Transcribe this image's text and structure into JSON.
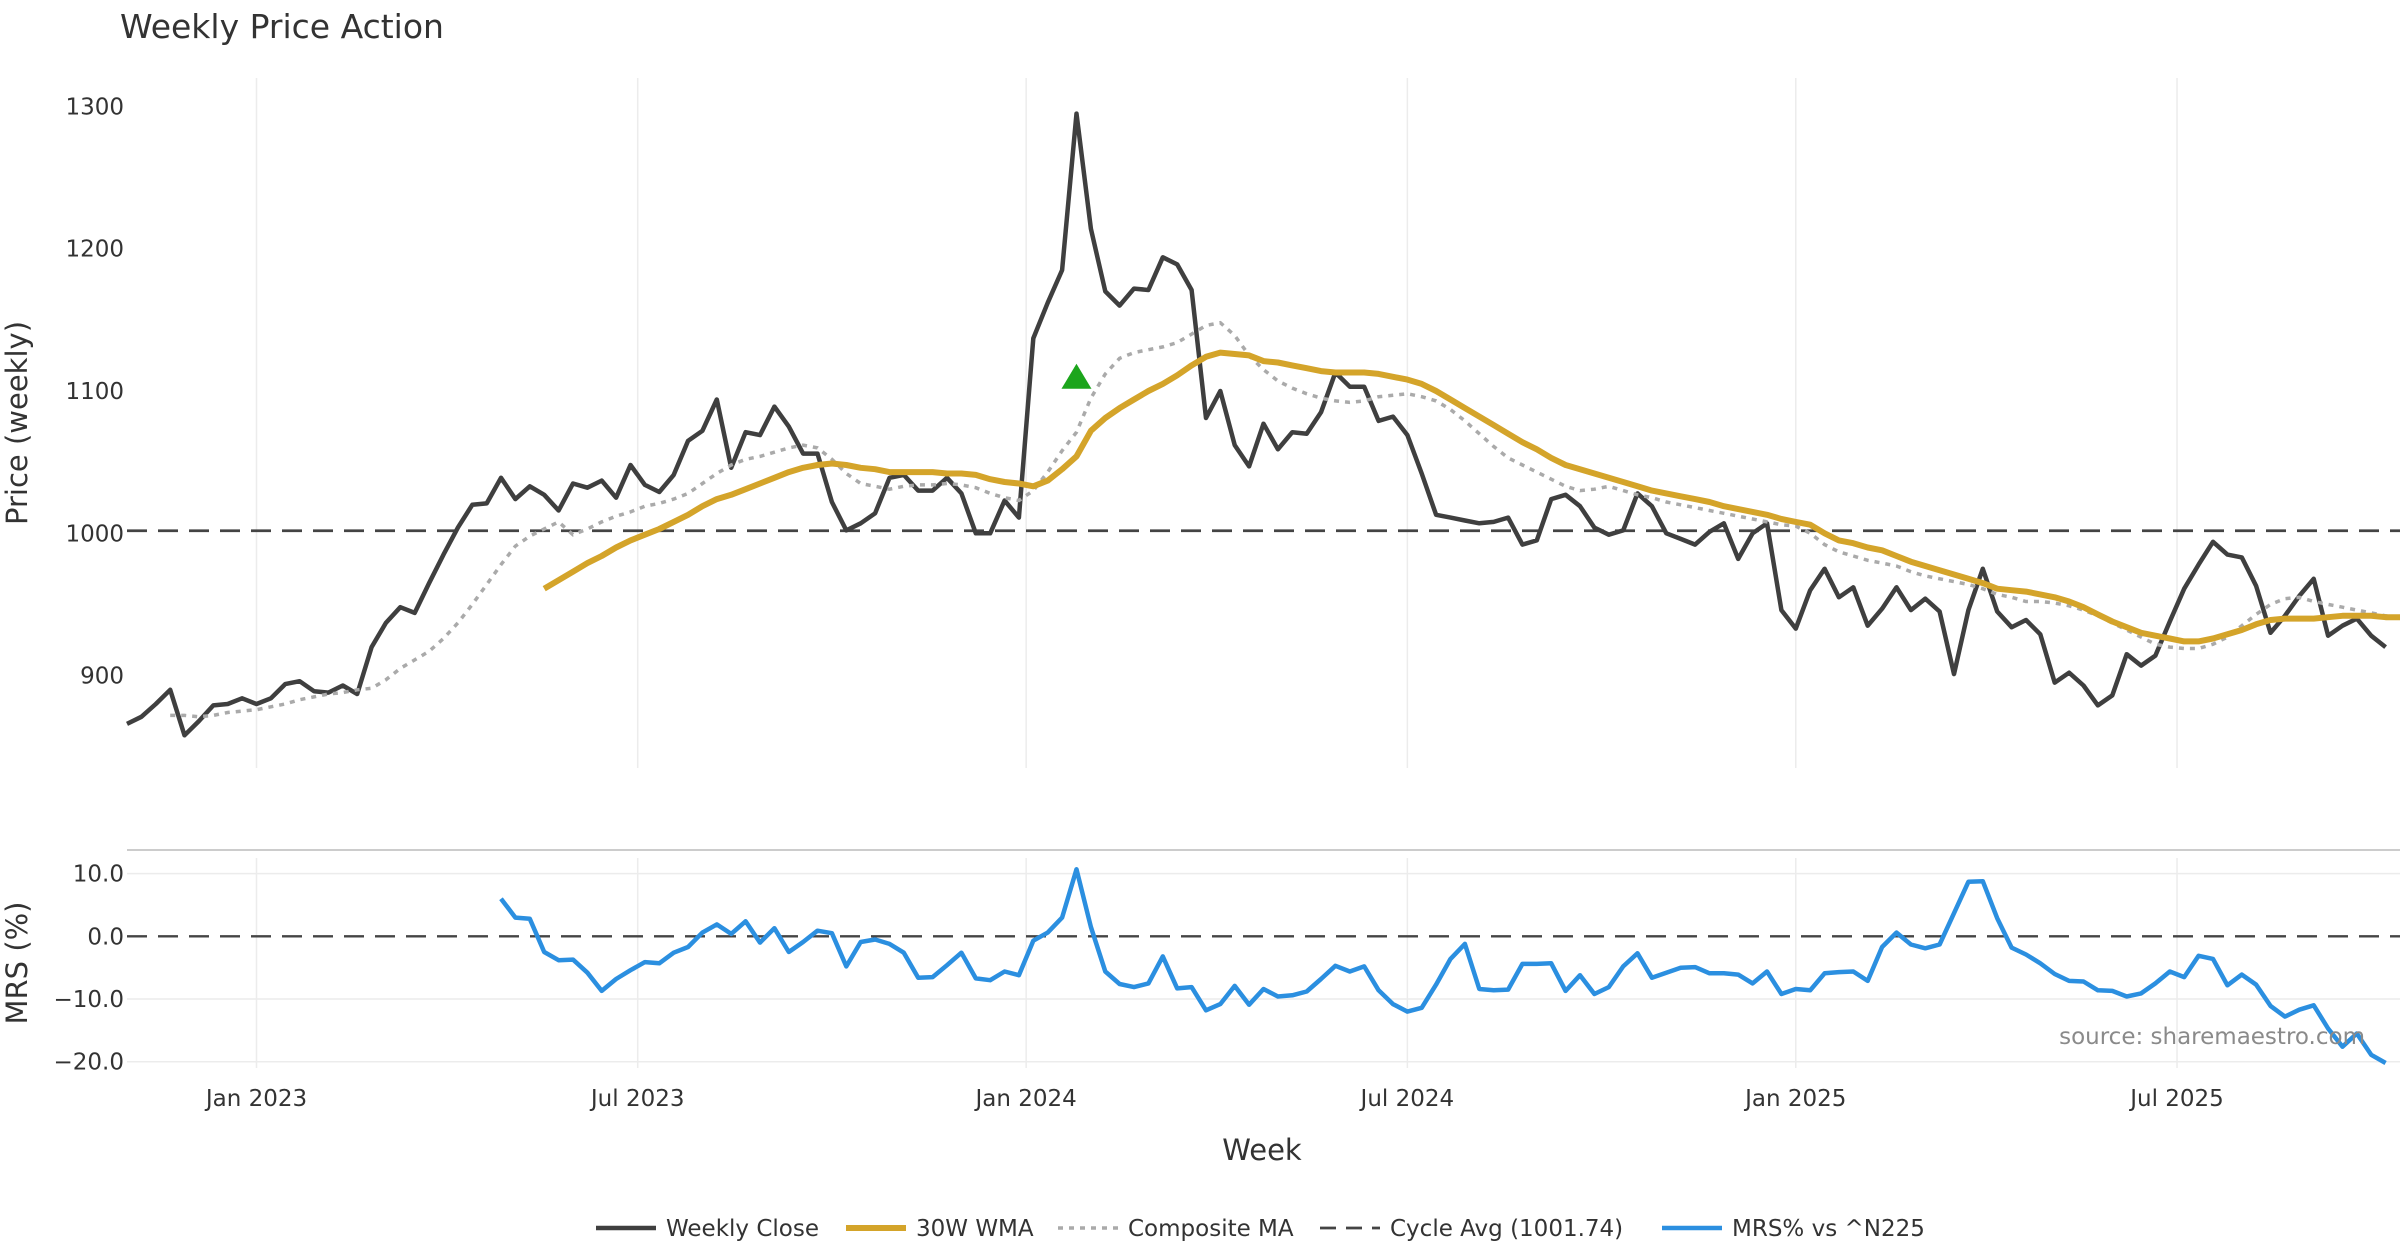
{
  "chart_data": {
    "type": "line",
    "title": "Weekly Price Action",
    "xlabel": "Week",
    "x_ticks": [
      "Jan 2023",
      "Jul 2023",
      "Jan 2024",
      "Jul 2024",
      "Jan 2025",
      "Jul 2025"
    ],
    "x_tick_weeks": [
      9,
      35.5,
      62.5,
      89,
      116,
      142.5
    ],
    "week_count": 159,
    "price_panel": {
      "ylabel": "Price (weekly)",
      "ylim": [
        835,
        1320
      ],
      "yticks": [
        900,
        1000,
        1100,
        1200,
        1300
      ],
      "series": [
        {
          "name": "Weekly Close",
          "color": "#3f3f3f",
          "style": "solid",
          "start": 0,
          "values": [
            866,
            871,
            880,
            890,
            858,
            868,
            879,
            880,
            884,
            880,
            884,
            894,
            896,
            889,
            888,
            893,
            887,
            920,
            937,
            948,
            944,
            965,
            985,
            1004,
            1020,
            1021,
            1039,
            1024,
            1033,
            1027,
            1016,
            1035,
            1032,
            1037,
            1025,
            1048,
            1034,
            1029,
            1041,
            1065,
            1072,
            1094,
            1046,
            1071,
            1069,
            1089,
            1075,
            1056,
            1056,
            1022,
            1002,
            1007,
            1014,
            1039,
            1041,
            1030,
            1030,
            1039,
            1028,
            1000,
            1000,
            1023,
            1011,
            1137,
            1162,
            1185,
            1295,
            1214,
            1170,
            1160,
            1172,
            1171,
            1194,
            1189,
            1171,
            1081,
            1100,
            1062,
            1047,
            1077,
            1059,
            1071,
            1070,
            1085,
            1113,
            1103,
            1103,
            1079,
            1082,
            1069,
            1042,
            1013,
            1011,
            1009,
            1007,
            1008,
            1011,
            992,
            995,
            1024,
            1027,
            1019,
            1004,
            999,
            1002,
            1028,
            1019,
            1000,
            996,
            992,
            1001,
            1007,
            982,
            1000,
            1007,
            946,
            933,
            960,
            975,
            955,
            962,
            935,
            947,
            962,
            946,
            954,
            945,
            901,
            946,
            975,
            945,
            934,
            939,
            929,
            895,
            902,
            893,
            879,
            886,
            915,
            907,
            914,
            938,
            961,
            978,
            994,
            985,
            983,
            963,
            930,
            942,
            956,
            968,
            928,
            935,
            940,
            928,
            920
          ]
        },
        {
          "name": "30W WMA",
          "color": "#d4a42a",
          "style": "solid",
          "start": 29,
          "values": [
            961,
            967,
            973,
            979,
            984,
            990,
            995,
            999,
            1003,
            1008,
            1013,
            1019,
            1024,
            1027,
            1031,
            1035,
            1039,
            1043,
            1046,
            1048,
            1049,
            1048,
            1046,
            1045,
            1043,
            1043,
            1043,
            1043,
            1042,
            1042,
            1041,
            1038,
            1036,
            1035,
            1033,
            1037,
            1045,
            1054,
            1072,
            1081,
            1088,
            1094,
            1100,
            1105,
            1111,
            1118,
            1124,
            1127,
            1126,
            1125,
            1121,
            1120,
            1118,
            1116,
            1114,
            1113,
            1113,
            1113,
            1112,
            1110,
            1108,
            1105,
            1100,
            1094,
            1088,
            1082,
            1076,
            1070,
            1064,
            1059,
            1053,
            1048,
            1045,
            1042,
            1039,
            1036,
            1033,
            1030,
            1028,
            1026,
            1024,
            1022,
            1019,
            1017,
            1015,
            1013,
            1010,
            1008,
            1006,
            1000,
            995,
            993,
            990,
            988,
            984,
            980,
            977,
            974,
            971,
            968,
            965,
            961,
            960,
            959,
            957,
            955,
            952,
            948,
            943,
            938,
            934,
            930,
            928,
            926,
            924,
            924,
            926,
            929,
            932,
            936,
            939,
            940,
            940,
            940,
            941,
            942,
            942,
            942,
            941,
            941,
            940,
            940
          ]
        },
        {
          "name": "Composite MA",
          "color": "#aaaaaa",
          "style": "dotted",
          "start": 3,
          "values": [
            872,
            872,
            871,
            872,
            874,
            875,
            876,
            878,
            880,
            883,
            885,
            887,
            888,
            890,
            891,
            897,
            905,
            911,
            917,
            926,
            937,
            950,
            964,
            978,
            991,
            998,
            1003,
            1008,
            999,
            1003,
            1008,
            1012,
            1015,
            1019,
            1021,
            1024,
            1028,
            1035,
            1042,
            1048,
            1052,
            1054,
            1057,
            1060,
            1062,
            1060,
            1052,
            1042,
            1035,
            1033,
            1031,
            1033,
            1034,
            1034,
            1035,
            1034,
            1032,
            1028,
            1025,
            1023,
            1030,
            1043,
            1058,
            1071,
            1095,
            1112,
            1123,
            1127,
            1129,
            1131,
            1134,
            1140,
            1146,
            1148,
            1139,
            1125,
            1115,
            1107,
            1102,
            1098,
            1095,
            1093,
            1092,
            1093,
            1096,
            1097,
            1098,
            1096,
            1093,
            1087,
            1079,
            1070,
            1061,
            1053,
            1048,
            1043,
            1038,
            1033,
            1030,
            1031,
            1033,
            1030,
            1027,
            1025,
            1022,
            1020,
            1018,
            1016,
            1014,
            1012,
            1010,
            1008,
            1006,
            1005,
            1000,
            992,
            987,
            984,
            981,
            979,
            977,
            973,
            970,
            968,
            966,
            964,
            961,
            957,
            955,
            952,
            952,
            951,
            949,
            946,
            942,
            937,
            932,
            927,
            922,
            920,
            919,
            919,
            922,
            927,
            935,
            943,
            950,
            954,
            955,
            952,
            950,
            948,
            946,
            944,
            942,
            941,
            940
          ]
        },
        {
          "name": "Cycle Avg (1001.74)",
          "color": "#444444",
          "style": "dashed",
          "value": 1001.74
        }
      ],
      "markers": [
        {
          "name": "buy-signal",
          "shape": "triangle-up",
          "color": "#1ca51c",
          "week": 66,
          "value": 1110
        }
      ]
    },
    "mrs_panel": {
      "ylabel": "MRS (%)",
      "ylim": [
        -21,
        12.5
      ],
      "yticks": [
        "10.0",
        "0.0",
        "−10.0",
        "−20.0"
      ],
      "ytick_values": [
        10,
        0,
        -10,
        -20
      ],
      "zero_line": true,
      "series": [
        {
          "name": "MRS% vs ^N225",
          "color": "#2b8fe0",
          "style": "solid",
          "start": 26,
          "values": [
            6,
            3,
            2.8,
            -2.5,
            -3.8,
            -3.7,
            -5.8,
            -8.7,
            -6.8,
            -5.4,
            -4.1,
            -4.3,
            -2.6,
            -1.7,
            0.6,
            1.9,
            0.4,
            2.4,
            -1,
            1.3,
            -2.5,
            -0.9,
            0.9,
            0.5,
            -4.8,
            -0.9,
            -0.5,
            -1.2,
            -2.6,
            -6.6,
            -6.5,
            -4.6,
            -2.6,
            -6.7,
            -7,
            -5.6,
            -6.2,
            -0.7,
            0.6,
            3,
            10.7,
            1.5,
            -5.6,
            -7.6,
            -8.1,
            -7.5,
            -3.2,
            -8.3,
            -8.1,
            -11.8,
            -10.8,
            -7.9,
            -10.9,
            -8.4,
            -9.6,
            -9.4,
            -8.8,
            -6.8,
            -4.7,
            -5.6,
            -4.8,
            -8.6,
            -10.8,
            -12,
            -11.4,
            -7.7,
            -3.6,
            -1.2,
            -8.4,
            -8.6,
            -8.5,
            -4.4,
            -4.4,
            -4.3,
            -8.7,
            -6.2,
            -9.2,
            -8.1,
            -4.8,
            -2.7,
            -6.6,
            -5.8,
            -5,
            -4.9,
            -5.9,
            -5.9,
            -6.1,
            -7.5,
            -5.6,
            -9.2,
            -8.4,
            -8.6,
            -5.9,
            -5.7,
            -5.6,
            -7.1,
            -1.7,
            0.6,
            -1.3,
            -1.9,
            -1.3,
            3.7,
            8.7,
            8.8,
            2.9,
            -1.8,
            -2.9,
            -4.3,
            -6,
            -7.1,
            -7.2,
            -8.6,
            -8.7,
            -9.6,
            -9.1,
            -7.5,
            -5.6,
            -6.5,
            -3.1,
            -3.6,
            -7.8,
            -6.1,
            -7.7,
            -11.1,
            -12.8,
            -11.7,
            -11,
            -14.7,
            -17.6,
            -15.5,
            -18.9,
            -20.2
          ]
        }
      ]
    },
    "legend": {
      "placement": "bottom-center",
      "items": [
        "Weekly Close",
        "30W WMA",
        "Composite MA",
        "Cycle Avg (1001.74)",
        "MRS% vs ^N225"
      ]
    },
    "annotation": "source: sharemaestro.com"
  }
}
